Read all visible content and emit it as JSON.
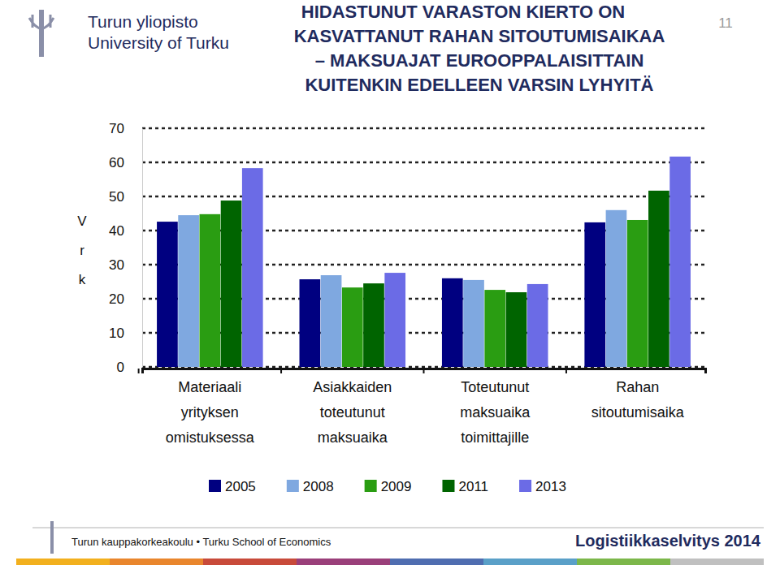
{
  "chart_data": {
    "type": "bar",
    "title": "HIDASTUNUT VARASTON KIERTO ON\nKASVATTANUT RAHAN SITOUTUMISAIKAA\n– MAKSUAJAT EUROOPPALAISITTAIN\nKUITENKIN EDELLEEN VARSIN LYHYITÄ",
    "y_label": "Vrk",
    "annotations": [
      "Turun yliopisto",
      "University of Turku",
      "11",
      "Turun kauppakorkeakoulu • Turku School of Economics",
      "Logistiikkaselvitys 2014"
    ],
    "categories": [
      "Materiaali\nyrityksen\nomistuksessa",
      "Asiakkaiden\ntoteutunut\nmaksuaika",
      "Toteutunut\nmaksuaika\ntoimittajille",
      "Rahan\nsitoutumisaika"
    ],
    "series": [
      {
        "name": "2005",
        "color": "#000080",
        "values": [
          42.6,
          25.7,
          26.0,
          42.4
        ]
      },
      {
        "name": "2008",
        "color": "#7fa8e0",
        "values": [
          44.5,
          26.9,
          25.5,
          46.0
        ]
      },
      {
        "name": "2009",
        "color": "#2a9d12",
        "values": [
          44.8,
          23.3,
          22.6,
          43.1
        ]
      },
      {
        "name": "2011",
        "color": "#006400",
        "values": [
          48.8,
          24.5,
          21.9,
          51.7
        ]
      },
      {
        "name": "2013",
        "color": "#6b6be6",
        "values": [
          58.3,
          27.6,
          24.3,
          61.7
        ]
      }
    ],
    "ylim": [
      0,
      70
    ],
    "yticks": [
      0,
      10,
      20,
      30,
      40,
      50,
      60,
      70
    ],
    "grid": true,
    "legend": "bottom"
  }
}
